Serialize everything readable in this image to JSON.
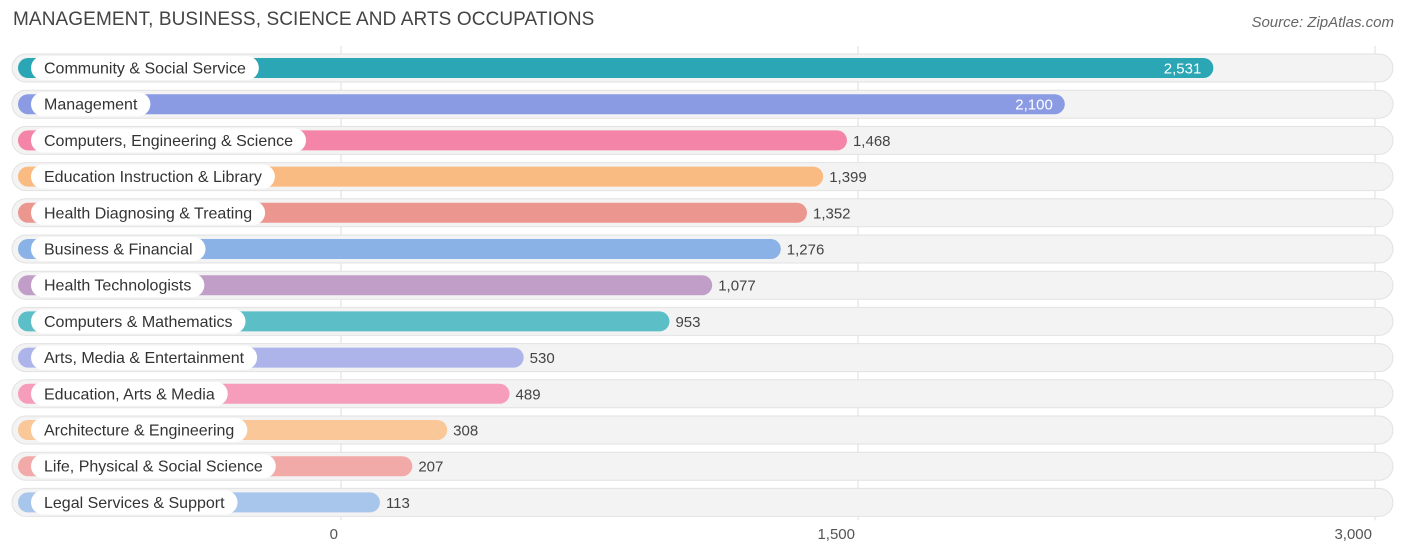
{
  "header": {
    "title": "MANAGEMENT, BUSINESS, SCIENCE AND ARTS OCCUPATIONS",
    "source": "Source: ZipAtlas.com"
  },
  "chart_data": {
    "type": "bar",
    "orientation": "horizontal",
    "title": "MANAGEMENT, BUSINESS, SCIENCE AND ARTS OCCUPATIONS",
    "xlabel": "",
    "ylabel": "",
    "xlim": [
      0,
      3000
    ],
    "ticks": [
      {
        "value": 0,
        "label": "0"
      },
      {
        "value": 1500,
        "label": "1,500"
      },
      {
        "value": 3000,
        "label": "3,000"
      }
    ],
    "grid": true,
    "categories": [
      "Community & Social Service",
      "Management",
      "Computers, Engineering & Science",
      "Education Instruction & Library",
      "Health Diagnosing & Treating",
      "Business & Financial",
      "Health Technologists",
      "Computers & Mathematics",
      "Arts, Media & Entertainment",
      "Education, Arts & Media",
      "Architecture & Engineering",
      "Life, Physical & Social Science",
      "Legal Services & Support"
    ],
    "values": [
      2531,
      2100,
      1468,
      1399,
      1352,
      1276,
      1077,
      953,
      530,
      489,
      308,
      207,
      113
    ],
    "value_labels": [
      "2,531",
      "2,100",
      "1,468",
      "1,399",
      "1,352",
      "1,276",
      "1,077",
      "953",
      "530",
      "489",
      "308",
      "207",
      "113"
    ],
    "colors": [
      "#2aa6b5",
      "#8a9be3",
      "#f484a8",
      "#f9bb82",
      "#ec9690",
      "#8ab2e6",
      "#c19ec8",
      "#5cbfc8",
      "#acb4ea",
      "#f59dbb",
      "#f9c798",
      "#f1aaa8",
      "#a8c6ec"
    ]
  }
}
